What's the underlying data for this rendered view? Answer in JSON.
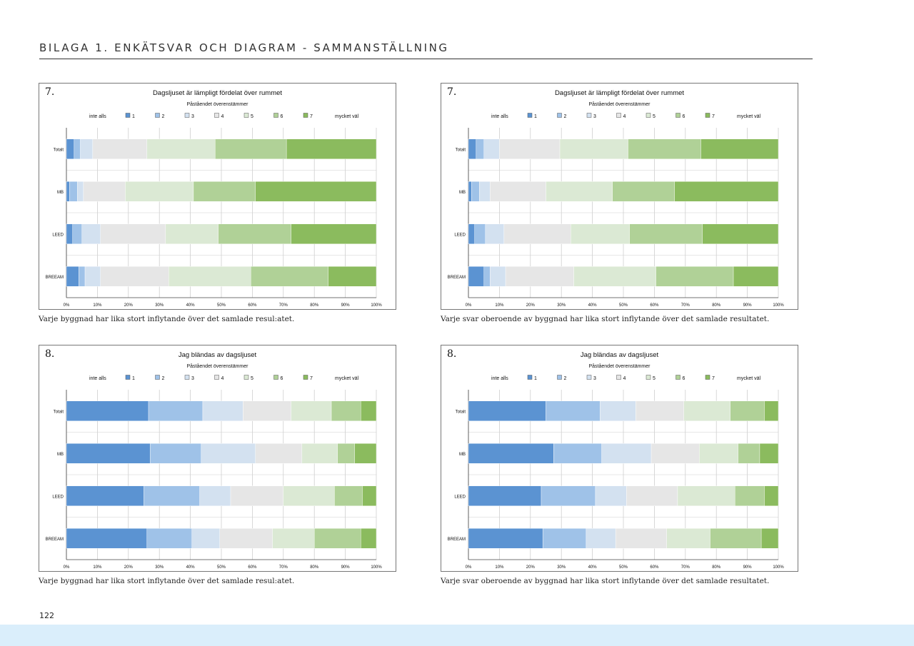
{
  "header": {
    "title": "BILAGA 1. ENKÄTSVAR OCH DIAGRAM - SAMMANSTÄLLNING"
  },
  "page_number": "122",
  "legend": {
    "left_label": "inte alls",
    "right_label": "mycket väl",
    "items": [
      "1",
      "2",
      "3",
      "4",
      "5",
      "6",
      "7"
    ],
    "colors": [
      "#5b93d2",
      "#9fc2e8",
      "#d3e1f0",
      "#e6e6e6",
      "#dbe9d4",
      "#b0d197",
      "#8bbb5e"
    ]
  },
  "chart_data": [
    {
      "type": "bar",
      "stacked": "100%",
      "orientation": "horizontal",
      "question_number": "7.",
      "title": "Dagsljuset är lämpligt fördelat över rummet",
      "legend_title": "Påståendet överenstämmer",
      "categories": [
        "Totalt",
        "MB",
        "LEED",
        "BREEAM"
      ],
      "x_ticks": [
        "0%",
        "10%",
        "20%",
        "30%",
        "40%",
        "50%",
        "60%",
        "70%",
        "80%",
        "90%",
        "100%"
      ],
      "series": [
        {
          "name": "1",
          "values": [
            2.5,
            1,
            2,
            4
          ]
        },
        {
          "name": "2",
          "values": [
            2,
            2.5,
            3,
            2
          ]
        },
        {
          "name": "3",
          "values": [
            4,
            2,
            6,
            5
          ]
        },
        {
          "name": "4",
          "values": [
            17.5,
            13.5,
            21,
            22
          ]
        },
        {
          "name": "5",
          "values": [
            22,
            22,
            17,
            26.5
          ]
        },
        {
          "name": "6",
          "values": [
            23,
            20,
            23.5,
            25
          ]
        },
        {
          "name": "7",
          "values": [
            29,
            39,
            27.5,
            15.5
          ]
        }
      ],
      "caption": "Varje byggnad har lika stort inflytande över det samlade resul:atet."
    },
    {
      "type": "bar",
      "stacked": "100%",
      "orientation": "horizontal",
      "question_number": "7.",
      "title": "Dagsljuset är lämpligt fördelat över rummet",
      "legend_title": "Påståendet överenstämmer",
      "categories": [
        "Totalt",
        "MB",
        "LEED",
        "BREEAM"
      ],
      "x_ticks": [
        "0%",
        "10%",
        "20%",
        "30%",
        "40%",
        "50%",
        "60%",
        "70%",
        "80%",
        "90%",
        "100%"
      ],
      "series": [
        {
          "name": "1",
          "values": [
            2.5,
            1,
            2,
            5
          ]
        },
        {
          "name": "2",
          "values": [
            2.5,
            2.5,
            3.5,
            2
          ]
        },
        {
          "name": "3",
          "values": [
            5,
            3.5,
            6,
            5
          ]
        },
        {
          "name": "4",
          "values": [
            19.5,
            18,
            21.5,
            22
          ]
        },
        {
          "name": "5",
          "values": [
            22,
            21.5,
            19,
            26.5
          ]
        },
        {
          "name": "6",
          "values": [
            23.5,
            20,
            23.5,
            25
          ]
        },
        {
          "name": "7",
          "values": [
            25,
            33.5,
            24.5,
            14.5
          ]
        }
      ],
      "caption": "Varje svar oberoende av byggnad har lika stort inflytande över det samlade resultatet."
    },
    {
      "type": "bar",
      "stacked": "100%",
      "orientation": "horizontal",
      "question_number": "8.",
      "title": "Jag bländas av dagsljuset",
      "legend_title": "Påståendet överenstämmer",
      "categories": [
        "Totalt",
        "MB",
        "LEED",
        "BREEAM"
      ],
      "x_ticks": [
        "0%",
        "10%",
        "20%",
        "30%",
        "40%",
        "50%",
        "60%",
        "70%",
        "80%",
        "90%",
        "100%"
      ],
      "series": [
        {
          "name": "1",
          "values": [
            26.5,
            27,
            25,
            26
          ]
        },
        {
          "name": "2",
          "values": [
            17.5,
            16.5,
            18,
            14.5
          ]
        },
        {
          "name": "3",
          "values": [
            13,
            17.5,
            10,
            9
          ]
        },
        {
          "name": "4",
          "values": [
            15.5,
            15,
            17,
            17
          ]
        },
        {
          "name": "5",
          "values": [
            13,
            11.5,
            16.5,
            13.5
          ]
        },
        {
          "name": "6",
          "values": [
            9.5,
            5.5,
            9,
            15
          ]
        },
        {
          "name": "7",
          "values": [
            5,
            7,
            4.5,
            5
          ]
        }
      ],
      "caption": "Varje byggnad har lika stort inflytande över det samlade resul:atet."
    },
    {
      "type": "bar",
      "stacked": "100%",
      "orientation": "horizontal",
      "question_number": "8.",
      "title": "Jag bländas av dagsljuset",
      "legend_title": "Påståendet överenstämmer",
      "categories": [
        "Totalt",
        "MB",
        "LEED",
        "BREEAM"
      ],
      "x_ticks": [
        "0%",
        "10%",
        "20%",
        "30%",
        "40%",
        "50%",
        "60%",
        "70%",
        "80%",
        "90%",
        "100%"
      ],
      "series": [
        {
          "name": "1",
          "values": [
            25,
            27.5,
            23.5,
            24
          ]
        },
        {
          "name": "2",
          "values": [
            17.5,
            15.5,
            17.5,
            14
          ]
        },
        {
          "name": "3",
          "values": [
            11.5,
            16,
            10,
            9.5
          ]
        },
        {
          "name": "4",
          "values": [
            15.5,
            15.5,
            16.5,
            16.5
          ]
        },
        {
          "name": "5",
          "values": [
            15,
            12.5,
            18.5,
            14
          ]
        },
        {
          "name": "6",
          "values": [
            11,
            7,
            9.5,
            16.5
          ]
        },
        {
          "name": "7",
          "values": [
            4.5,
            6,
            4.5,
            5.5
          ]
        }
      ],
      "caption": "Varje svar oberoende av byggnad har lika stort inflytande över det samlade resultatet."
    }
  ]
}
